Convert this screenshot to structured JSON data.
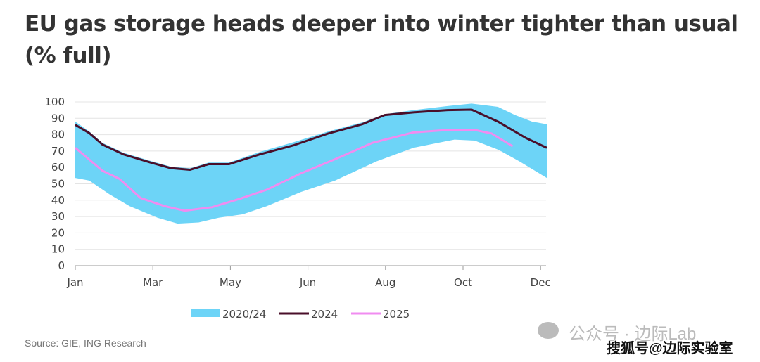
{
  "chart_data": {
    "type": "area",
    "title": "EU gas storage heads deeper into winter tighter than usual (% full)",
    "xlabel": "",
    "ylabel": "",
    "x_ticks": [
      "Jan",
      "Mar",
      "May",
      "Jun",
      "Aug",
      "Oct",
      "Dec"
    ],
    "y_ticks": [
      0,
      10,
      20,
      30,
      40,
      50,
      60,
      70,
      80,
      90,
      100
    ],
    "ylim": [
      0,
      100
    ],
    "x_note": "x in axis tick units (0=Jan ... 6=Dec)",
    "grid": true,
    "legend_position": "bottom",
    "band": {
      "name": "2020/24",
      "color": "#6dd4f7",
      "upper": [
        [
          0,
          88
        ],
        [
          0.18,
          82
        ],
        [
          0.35,
          75
        ],
        [
          0.62,
          69
        ],
        [
          0.97,
          64
        ],
        [
          1.23,
          60.5
        ],
        [
          1.48,
          59.5
        ],
        [
          1.72,
          63
        ],
        [
          1.98,
          63
        ],
        [
          2.38,
          69.5
        ],
        [
          2.82,
          75.5
        ],
        [
          3.26,
          82
        ],
        [
          3.7,
          87.5
        ],
        [
          3.99,
          92.5
        ],
        [
          4.36,
          95
        ],
        [
          4.8,
          97.5
        ],
        [
          5.11,
          99
        ],
        [
          5.45,
          97
        ],
        [
          5.67,
          92
        ],
        [
          5.89,
          88
        ],
        [
          6.08,
          86.4
        ]
      ],
      "lower": [
        [
          0,
          53.6
        ],
        [
          0.18,
          52
        ],
        [
          0.44,
          43.6
        ],
        [
          0.7,
          36.4
        ],
        [
          1.06,
          29.3
        ],
        [
          1.32,
          25.7
        ],
        [
          1.59,
          26.4
        ],
        [
          1.85,
          29.3
        ],
        [
          2.16,
          31.4
        ],
        [
          2.47,
          36.4
        ],
        [
          2.91,
          45
        ],
        [
          3.35,
          52
        ],
        [
          3.88,
          63.6
        ],
        [
          4.36,
          72
        ],
        [
          4.89,
          77
        ],
        [
          5.15,
          76.4
        ],
        [
          5.46,
          70.7
        ],
        [
          5.73,
          63.6
        ],
        [
          6.08,
          53.6
        ]
      ]
    },
    "series": [
      {
        "name": "2024",
        "color": "#4a0f2a",
        "points": [
          [
            0,
            86
          ],
          [
            0.18,
            81
          ],
          [
            0.35,
            74
          ],
          [
            0.62,
            68
          ],
          [
            0.97,
            63
          ],
          [
            1.23,
            59.6
          ],
          [
            1.48,
            58.6
          ],
          [
            1.72,
            62
          ],
          [
            1.98,
            62
          ],
          [
            2.38,
            68
          ],
          [
            2.82,
            73.6
          ],
          [
            3.26,
            80.7
          ],
          [
            3.7,
            86.4
          ],
          [
            3.99,
            92
          ],
          [
            4.36,
            93.6
          ],
          [
            4.8,
            95
          ],
          [
            5.11,
            95.3
          ],
          [
            5.45,
            88
          ],
          [
            5.81,
            78
          ],
          [
            6.08,
            72
          ]
        ]
      },
      {
        "name": "2025",
        "color": "#f08cf0",
        "points": [
          [
            0,
            72
          ],
          [
            0.35,
            58
          ],
          [
            0.57,
            53
          ],
          [
            0.84,
            41.4
          ],
          [
            1.15,
            36.4
          ],
          [
            1.41,
            33.6
          ],
          [
            1.76,
            35.7
          ],
          [
            2.11,
            40.7
          ],
          [
            2.47,
            46.4
          ],
          [
            2.91,
            56.4
          ],
          [
            3.35,
            65
          ],
          [
            3.83,
            75
          ],
          [
            4.36,
            81.4
          ],
          [
            4.8,
            82.9
          ],
          [
            5.15,
            82.9
          ],
          [
            5.37,
            80.7
          ],
          [
            5.64,
            72.9
          ]
        ]
      }
    ]
  },
  "source": "Source: GIE, ING Research",
  "watermark": {
    "line1": "公众号 · 边际Lab",
    "line2": "搜狐号@边际实验室"
  }
}
